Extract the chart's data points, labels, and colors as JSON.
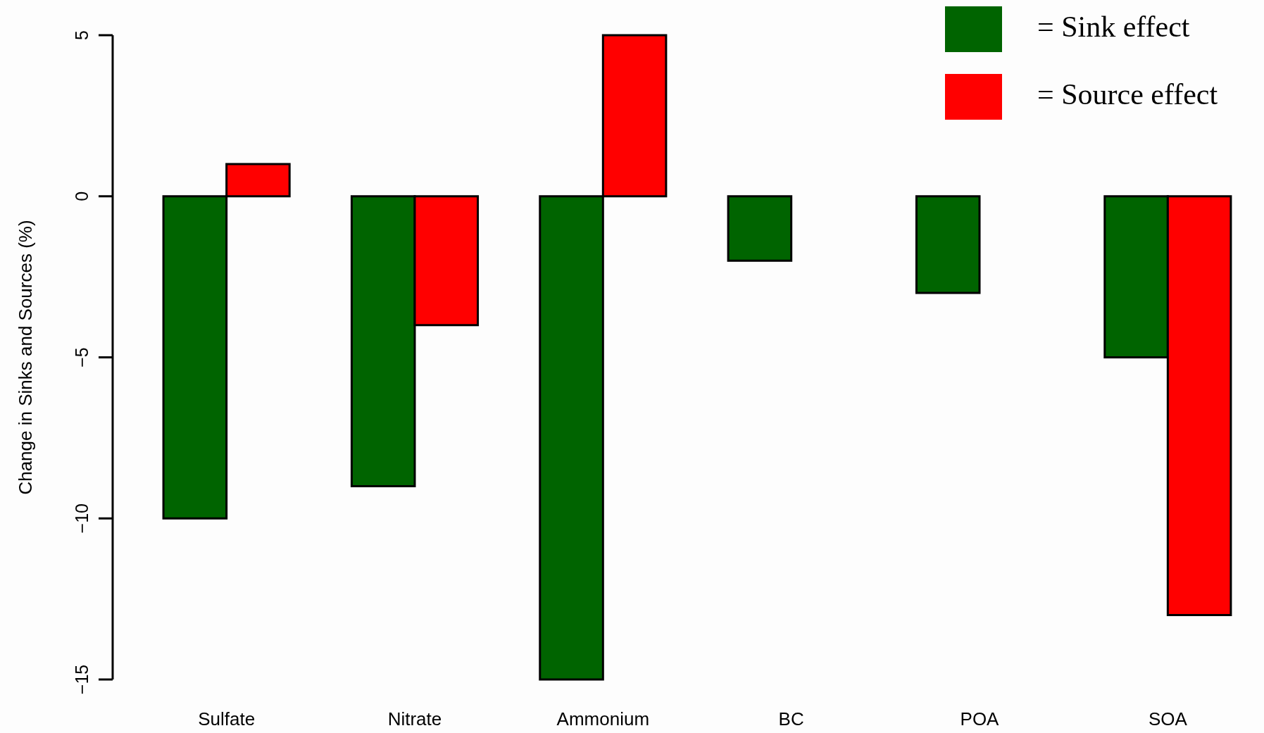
{
  "chart_data": {
    "type": "bar",
    "ylabel": "Change in Sinks and Sources (%)",
    "categories": [
      "Sulfate",
      "Nitrate",
      "Ammonium",
      "BC",
      "POA",
      "SOA"
    ],
    "series": [
      {
        "name": "= Sink effect",
        "color": "#006400",
        "values": [
          -10,
          -9,
          -15,
          -2,
          -3,
          -5
        ]
      },
      {
        "name": "= Source effect",
        "color": "#ff0000",
        "values": [
          1,
          -4,
          5,
          0,
          0,
          -13
        ]
      }
    ],
    "ylim": [
      -15,
      5
    ],
    "yticks": [
      -15,
      -10,
      -5,
      0,
      5
    ],
    "grid": false,
    "legend": "top right"
  }
}
